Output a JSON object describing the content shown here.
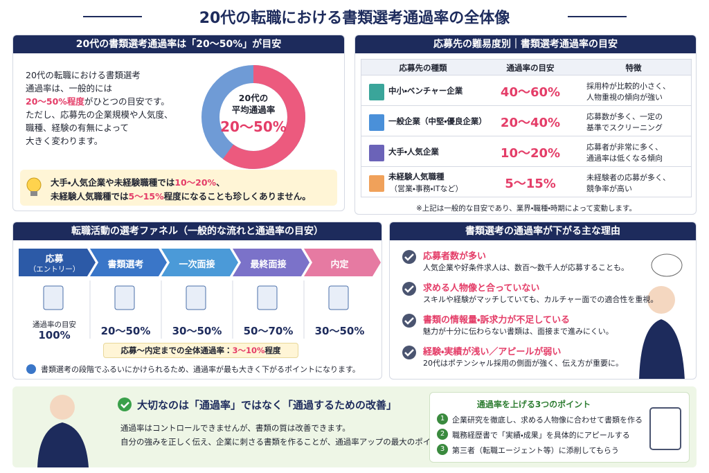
{
  "title": "20代の転職における書類選考通過率の全体像",
  "overview": {
    "heading": "20代の書類選考通過率は「20〜50%」が目安",
    "lines": [
      "20代の転職における書類選考",
      "通過率は、一般的には"
    ],
    "highlight": "20〜50%程度",
    "highlight_after": "がひとつの目安です。",
    "lines2": [
      "ただし、応募先の企業規模や人気度、",
      "職種、経験の有無によって",
      "大きく変わります。"
    ],
    "donut": {
      "label1": "20代の",
      "label2": "平均通過率",
      "value": "20〜50%"
    },
    "note": {
      "part1": "大手・人気企業や未経験職種では",
      "hl1": "10〜20%",
      "part2": "、",
      "part3": "未経験人気職種では",
      "hl2": "5〜15%",
      "part4": "程度になることも珍しくありません。"
    }
  },
  "difficulty": {
    "heading": "応募先の難易度別｜書類選考通過率の目安",
    "columns": [
      "応募先の種類",
      "通過率の目安",
      "特徴"
    ],
    "rows": [
      {
        "type": "中小・ベンチャー企業",
        "rate": "40〜60%",
        "feature": [
          "採用枠が比較的小さく、",
          "人物重視の傾向が強い"
        ]
      },
      {
        "type": "一般企業（中堅・優良企業）",
        "rate": "20〜40%",
        "feature": [
          "応募数が多く、一定の",
          "基準でスクリーニング"
        ]
      },
      {
        "type": "大手・人気企業",
        "rate": "10〜20%",
        "feature": [
          "応募者が非常に多く、",
          "通過率は低くなる傾向"
        ]
      },
      {
        "type": "未経験人気職種",
        "type_sub": "（営業・事務・ITなど）",
        "rate": "5〜15%",
        "feature": [
          "未経験者の応募が多く、",
          "競争率が高い"
        ]
      }
    ],
    "note": "※上記は一般的な目安であり、業界・職種・時期によって変動します。"
  },
  "funnel": {
    "heading": "転職活動の選考ファネル（一般的な流れと通過率の目安）",
    "steps": [
      {
        "label": "応募",
        "sub": "（エントリー）",
        "rate_label": "通過率の目安",
        "rate": "100%"
      },
      {
        "label": "書類選考",
        "rate": "20〜50%"
      },
      {
        "label": "一次面接",
        "rate": "30〜50%"
      },
      {
        "label": "最終面接",
        "rate": "50〜70%"
      },
      {
        "label": "内定",
        "rate": "30〜50%"
      }
    ],
    "overall": {
      "text": "応募〜内定までの全体通過率：",
      "value": "3〜10%",
      "suffix": "程度"
    },
    "note": "書類選考の段階でふるいにかけられるため、通過率が最も大きく下がるポイントになります。"
  },
  "reasons": {
    "heading": "書類選考の通過率が下がる主な理由",
    "items": [
      {
        "title": "応募者数が多い",
        "text": "人気企業や好条件求人は、数百〜数千人が応募することも。"
      },
      {
        "title": "求める人物像と合っていない",
        "text": "スキルや経験がマッチしていても、カルチャー面での適合性を重視。"
      },
      {
        "title": "書類の情報量・訴求力が不足している",
        "text": "魅力が十分に伝わらない書類は、面接まで進みにくい。"
      },
      {
        "title": "経験・実績が浅い／アピールが弱い",
        "text": "20代はポテンシャル採用の側面が強く、伝え方が重要に。"
      }
    ]
  },
  "summary": {
    "heading": "大切なのは「通過率」ではなく「通過するための改善」",
    "lines": [
      "通過率はコントロールできませんが、書類の質は改善できます。",
      "自分の強みを正しく伝え、企業に刺さる書類を作ることが、通過率アップの最大のポイントります。"
    ],
    "points": {
      "title": "通過率を上げる3つのポイント",
      "items": [
        {
          "num": "1",
          "text": "企業研究を徹底し、求める人物像に合わせて書類を作る"
        },
        {
          "num": "2",
          "text": "職務経歴書で「実績・成果」を具体的にアピールする"
        },
        {
          "num": "3",
          "text": "第三者（転職エージェント等）に添削してもらう"
        }
      ]
    }
  }
}
